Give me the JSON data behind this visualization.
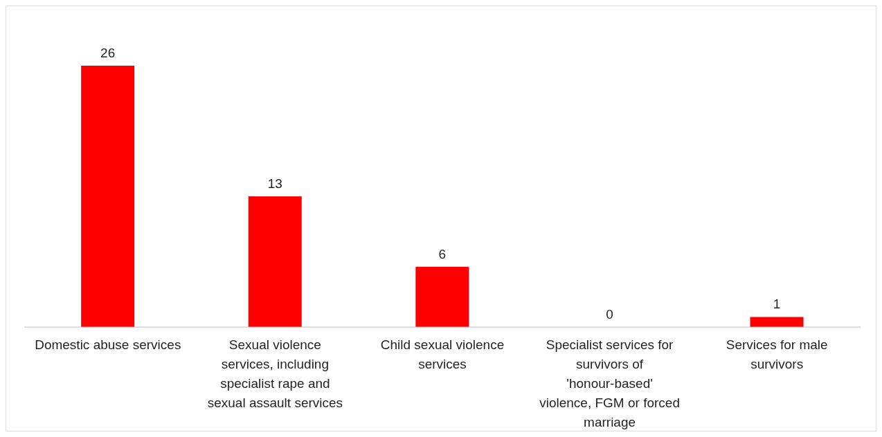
{
  "chart_data": {
    "type": "bar",
    "categories": [
      "Domestic abuse services",
      "Sexual violence services, including specialist rape and sexual assault services",
      "Child sexual violence services",
      "Specialist services for survivors of 'honour-based' violence, FGM or forced marriage",
      "Services for male survivors"
    ],
    "values": [
      26,
      13,
      6,
      0,
      1
    ],
    "color": "#ff0000",
    "data_labels": true
  }
}
